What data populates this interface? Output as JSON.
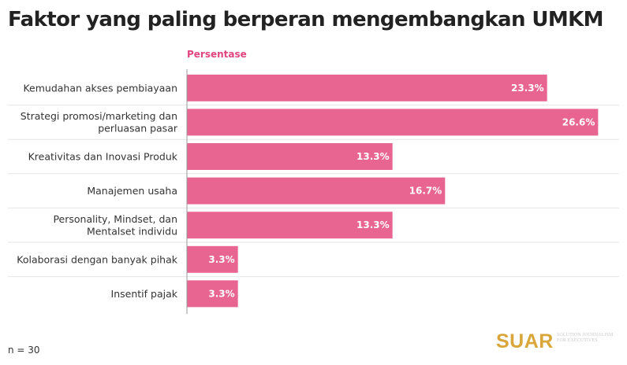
{
  "title": "Faktor yang paling berperan mengembangkan UMKM",
  "footer": {
    "sample_size": "n = 30",
    "brand": "SUAR",
    "brand_tagline": "SOLUTION JOURNALISM FOR EXECUTIVES"
  },
  "colors": {
    "bar": "#e86591",
    "header": "#e0447f",
    "brand": "#d9a63a"
  },
  "chart_data": {
    "type": "bar",
    "orientation": "horizontal",
    "series": [
      {
        "name": "Persentase",
        "values": [
          23.3,
          26.6,
          13.3,
          16.7,
          13.3,
          3.3,
          3.3
        ]
      }
    ],
    "categories": [
      [
        "Kemudahan akses pembiayaan"
      ],
      [
        "Strategi promosi/marketing dan",
        "perluasan pasar"
      ],
      [
        "Kreativitas dan Inovasi Produk"
      ],
      [
        "Manajemen usaha"
      ],
      [
        "Personality, Mindset, dan",
        "Mentalset individu"
      ],
      [
        "Kolaborasi dengan banyak pihak"
      ],
      [
        "Insentif pajak"
      ]
    ],
    "value_labels": [
      "23.3%",
      "26.6%",
      "13.3%",
      "16.7%",
      "13.3%",
      "3.3%",
      "3.3%"
    ],
    "xlim": [
      0,
      30
    ],
    "grid": "horizontal separators between rows",
    "legend": "none"
  }
}
